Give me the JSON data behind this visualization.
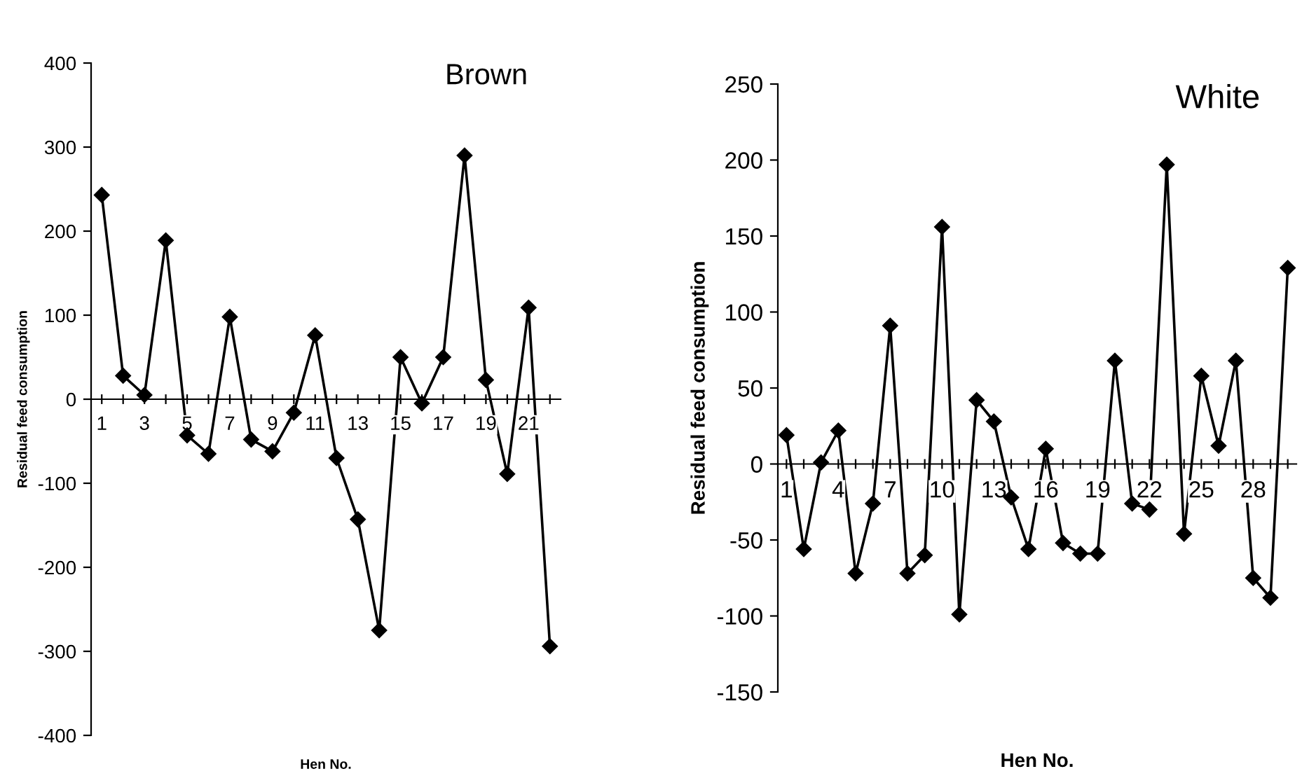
{
  "chart_data": [
    {
      "type": "line",
      "title": "Brown",
      "xlabel": "Hen No.",
      "ylabel": "Residual feed consumption",
      "categories": [
        "1",
        null,
        "3",
        null,
        "5",
        null,
        "7",
        null,
        "9",
        null,
        "11",
        null,
        "13",
        null,
        "15",
        null,
        "17",
        null,
        "19",
        null,
        "21",
        null
      ],
      "series": [
        {
          "color": "#000000",
          "values": [
            243,
            28,
            5,
            189,
            -43,
            -65,
            98,
            -48,
            -62,
            -16,
            76,
            -70,
            -143,
            -275,
            50,
            -5,
            50,
            290,
            23,
            -89,
            109,
            -294
          ]
        }
      ],
      "ylim": [
        -400,
        400
      ],
      "yticks": [
        -400,
        -300,
        -200,
        -100,
        0,
        100,
        200,
        300,
        400
      ],
      "grid": false,
      "legend": false,
      "marker": "diamond",
      "line_style": "solid"
    },
    {
      "type": "line",
      "title": "White",
      "xlabel": "Hen No.",
      "ylabel": "Residual feed consumption",
      "categories": [
        "1",
        null,
        null,
        "4",
        null,
        null,
        "7",
        null,
        null,
        "10",
        null,
        null,
        "13",
        null,
        null,
        "16",
        null,
        null,
        "19",
        null,
        null,
        "22",
        null,
        null,
        "25",
        null,
        null,
        "28",
        null,
        null
      ],
      "series": [
        {
          "color": "#000000",
          "values": [
            19,
            -56,
            1,
            22,
            -72,
            -26,
            91,
            -72,
            -60,
            156,
            -99,
            42,
            28,
            -22,
            -56,
            10,
            -52,
            -59,
            -59,
            68,
            -26,
            -30,
            197,
            -46,
            58,
            12,
            68,
            -75,
            -88,
            129
          ]
        }
      ],
      "ylim": [
        -150,
        250
      ],
      "yticks": [
        -150,
        -100,
        -50,
        0,
        50,
        100,
        150,
        200,
        250
      ],
      "grid": false,
      "legend": false,
      "marker": "diamond",
      "line_style": "solid"
    }
  ]
}
